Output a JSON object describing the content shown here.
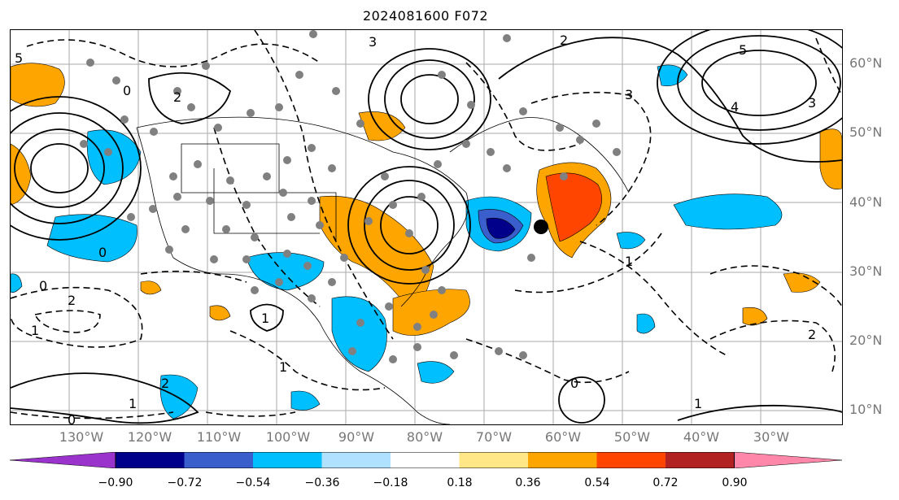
{
  "title": "2024081600 F072",
  "lat_labels": [
    "60°N",
    "50°N",
    "40°N",
    "30°N",
    "20°N",
    "10°N"
  ],
  "lon_labels": [
    "130°W",
    "120°W",
    "110°W",
    "100°W",
    "90°W",
    "80°W",
    "70°W",
    "60°W",
    "50°W",
    "40°W",
    "30°W"
  ],
  "contour_labels": [
    "5",
    "3",
    "2",
    "3",
    "0",
    "5",
    "4",
    "3",
    "2",
    "1",
    "0",
    "1",
    "2",
    "2",
    "1",
    "1",
    "1",
    "2",
    "0",
    "1",
    "0",
    "0"
  ],
  "colorbar": {
    "ticks": [
      "−0.90",
      "−0.72",
      "−0.54",
      "−0.36",
      "−0.18",
      "0.18",
      "0.36",
      "0.54",
      "0.72",
      "0.90"
    ],
    "colors": [
      "#9a33cc",
      "#00008b",
      "#3a5fcd",
      "#00bfff",
      "#b0e2ff",
      "#ffffff",
      "#ffe687",
      "#ffa500",
      "#ff4500",
      "#b22222",
      "#ff88aa"
    ]
  },
  "colors": {
    "land_boundaries": "#000000",
    "grid": "#999999",
    "stations": "#808080",
    "marker": "#000000"
  }
}
